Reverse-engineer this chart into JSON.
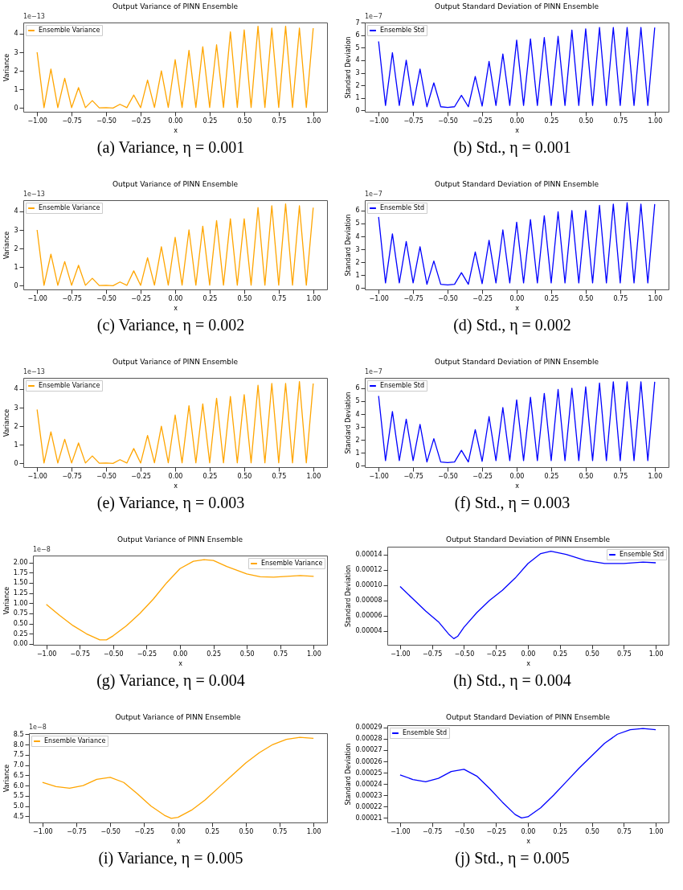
{
  "chart_data": [
    {
      "type": "line",
      "title": "Output Variance of PINN Ensemble",
      "xlabel": "x",
      "ylabel": "Variance",
      "legend": "top left",
      "annotations": [
        "1e−13",
        "(a) Variance, η = 0.001"
      ],
      "xlim": [
        -1.1,
        1.1
      ],
      "xticks": [
        {
          "value": -1,
          "label": "−1.00"
        },
        {
          "value": -0.75,
          "label": "−0.75"
        },
        {
          "value": -0.5,
          "label": "−0.50"
        },
        {
          "value": -0.25,
          "label": "−0.25"
        },
        {
          "value": 0,
          "label": "0.00"
        },
        {
          "value": 0.25,
          "label": "0.25"
        },
        {
          "value": 0.5,
          "label": "0.50"
        },
        {
          "value": 0.75,
          "label": "0.75"
        },
        {
          "value": 1,
          "label": "1.00"
        }
      ],
      "ylim": [
        -0.2,
        4.6
      ],
      "yticks": [
        0,
        1,
        2,
        3,
        4
      ],
      "x": [
        -1,
        -0.95,
        -0.9,
        -0.85,
        -0.8,
        -0.75,
        -0.7,
        -0.65,
        -0.6,
        -0.55,
        -0.5,
        -0.45,
        -0.4,
        -0.35,
        -0.3,
        -0.25,
        -0.2,
        -0.15,
        -0.1,
        -0.05,
        0,
        0.05,
        0.1,
        0.15,
        0.2,
        0.25,
        0.3,
        0.35,
        0.4,
        0.45,
        0.5,
        0.55,
        0.6,
        0.65,
        0.7,
        0.75,
        0.8,
        0.85,
        0.9,
        0.95,
        1
      ],
      "series": [
        {
          "name": "Ensemble Variance",
          "color": "#ffa500",
          "values": [
            3.0,
            0.02,
            2.1,
            0.02,
            1.6,
            0.02,
            1.1,
            0.02,
            0.4,
            0.01,
            0.02,
            0.0,
            0.2,
            0.02,
            0.7,
            0.02,
            1.5,
            0.03,
            2.0,
            0.03,
            2.6,
            0.03,
            3.1,
            0.03,
            3.3,
            0.03,
            3.4,
            0.03,
            4.1,
            0.03,
            4.2,
            0.03,
            4.4,
            0.03,
            4.3,
            0.03,
            4.4,
            0.03,
            4.3,
            0.03,
            4.3
          ]
        }
      ]
    },
    {
      "type": "line",
      "title": "Output Standard Deviation of PINN Ensemble",
      "xlabel": "x",
      "ylabel": "Standard Deviation",
      "legend": "top left",
      "annotations": [
        "1e−7",
        "(b) Std., η = 0.001"
      ],
      "xlim": [
        -1.1,
        1.1
      ],
      "xticks": [
        {
          "value": -1,
          "label": "−1.00"
        },
        {
          "value": -0.75,
          "label": "−0.75"
        },
        {
          "value": -0.5,
          "label": "−0.50"
        },
        {
          "value": -0.25,
          "label": "−0.25"
        },
        {
          "value": 0,
          "label": "0.00"
        },
        {
          "value": 0.25,
          "label": "0.25"
        },
        {
          "value": 0.5,
          "label": "0.50"
        },
        {
          "value": 0.75,
          "label": "0.75"
        },
        {
          "value": 1,
          "label": "1.00"
        }
      ],
      "ylim": [
        -0.1,
        7
      ],
      "yticks": [
        0,
        1,
        2,
        3,
        4,
        5,
        6,
        7
      ],
      "x": [
        -1,
        -0.95,
        -0.9,
        -0.85,
        -0.8,
        -0.75,
        -0.7,
        -0.65,
        -0.6,
        -0.55,
        -0.5,
        -0.45,
        -0.4,
        -0.35,
        -0.3,
        -0.25,
        -0.2,
        -0.15,
        -0.1,
        -0.05,
        0,
        0.05,
        0.1,
        0.15,
        0.2,
        0.25,
        0.3,
        0.35,
        0.4,
        0.45,
        0.5,
        0.55,
        0.6,
        0.65,
        0.7,
        0.75,
        0.8,
        0.85,
        0.9,
        0.95,
        1
      ],
      "series": [
        {
          "name": "Ensemble Std",
          "color": "#0000ff",
          "values": [
            5.5,
            0.4,
            4.6,
            0.4,
            4.0,
            0.4,
            3.3,
            0.3,
            2.2,
            0.3,
            0.25,
            0.3,
            1.2,
            0.3,
            2.7,
            0.35,
            3.9,
            0.4,
            4.5,
            0.4,
            5.6,
            0.4,
            5.7,
            0.4,
            5.8,
            0.4,
            5.9,
            0.4,
            6.4,
            0.4,
            6.5,
            0.4,
            6.6,
            0.4,
            6.6,
            0.4,
            6.6,
            0.4,
            6.6,
            0.4,
            6.6
          ]
        }
      ]
    },
    {
      "type": "line",
      "title": "Output Variance of PINN Ensemble",
      "xlabel": "x",
      "ylabel": "Variance",
      "legend": "top left",
      "annotations": [
        "1e−13",
        "(c) Variance, η = 0.002"
      ],
      "xlim": [
        -1.1,
        1.1
      ],
      "xticks": [
        {
          "value": -1,
          "label": "−1.00"
        },
        {
          "value": -0.75,
          "label": "−0.75"
        },
        {
          "value": -0.5,
          "label": "−0.50"
        },
        {
          "value": -0.25,
          "label": "−0.25"
        },
        {
          "value": 0,
          "label": "0.00"
        },
        {
          "value": 0.25,
          "label": "0.25"
        },
        {
          "value": 0.5,
          "label": "0.50"
        },
        {
          "value": 0.75,
          "label": "0.75"
        },
        {
          "value": 1,
          "label": "1.00"
        }
      ],
      "ylim": [
        -0.2,
        4.6
      ],
      "yticks": [
        0,
        1,
        2,
        3,
        4
      ],
      "x": [
        -1,
        -0.95,
        -0.9,
        -0.85,
        -0.8,
        -0.75,
        -0.7,
        -0.65,
        -0.6,
        -0.55,
        -0.5,
        -0.45,
        -0.4,
        -0.35,
        -0.3,
        -0.25,
        -0.2,
        -0.15,
        -0.1,
        -0.05,
        0,
        0.05,
        0.1,
        0.15,
        0.2,
        0.25,
        0.3,
        0.35,
        0.4,
        0.45,
        0.5,
        0.55,
        0.6,
        0.65,
        0.7,
        0.75,
        0.8,
        0.85,
        0.9,
        0.95,
        1
      ],
      "series": [
        {
          "name": "Ensemble Variance",
          "color": "#ffa500",
          "values": [
            3.0,
            0.02,
            1.7,
            0.02,
            1.3,
            0.02,
            1.1,
            0.02,
            0.4,
            0.01,
            0.02,
            0.0,
            0.2,
            0.02,
            0.8,
            0.02,
            1.5,
            0.03,
            2.1,
            0.03,
            2.6,
            0.03,
            3.0,
            0.03,
            3.2,
            0.03,
            3.5,
            0.03,
            3.6,
            0.03,
            3.6,
            0.03,
            4.2,
            0.03,
            4.3,
            0.03,
            4.4,
            0.03,
            4.3,
            0.03,
            4.2
          ]
        }
      ]
    },
    {
      "type": "line",
      "title": "Output Standard Deviation of PINN Ensemble",
      "xlabel": "x",
      "ylabel": "Standard Deviation",
      "legend": "top left",
      "annotations": [
        "1e−7",
        "(d) Std., η = 0.002"
      ],
      "xlim": [
        -1.1,
        1.1
      ],
      "xticks": [
        {
          "value": -1,
          "label": "−1.00"
        },
        {
          "value": -0.75,
          "label": "−0.75"
        },
        {
          "value": -0.5,
          "label": "−0.50"
        },
        {
          "value": -0.25,
          "label": "−0.25"
        },
        {
          "value": 0,
          "label": "0.00"
        },
        {
          "value": 0.25,
          "label": "0.25"
        },
        {
          "value": 0.5,
          "label": "0.50"
        },
        {
          "value": 0.75,
          "label": "0.75"
        },
        {
          "value": 1,
          "label": "1.00"
        }
      ],
      "ylim": [
        -0.1,
        6.8
      ],
      "yticks": [
        0,
        1,
        2,
        3,
        4,
        5,
        6
      ],
      "x": [
        -1,
        -0.95,
        -0.9,
        -0.85,
        -0.8,
        -0.75,
        -0.7,
        -0.65,
        -0.6,
        -0.55,
        -0.5,
        -0.45,
        -0.4,
        -0.35,
        -0.3,
        -0.25,
        -0.2,
        -0.15,
        -0.1,
        -0.05,
        0,
        0.05,
        0.1,
        0.15,
        0.2,
        0.25,
        0.3,
        0.35,
        0.4,
        0.45,
        0.5,
        0.55,
        0.6,
        0.65,
        0.7,
        0.75,
        0.8,
        0.85,
        0.9,
        0.95,
        1
      ],
      "series": [
        {
          "name": "Ensemble Std",
          "color": "#0000ff",
          "values": [
            5.5,
            0.4,
            4.2,
            0.4,
            3.6,
            0.4,
            3.2,
            0.3,
            2.1,
            0.3,
            0.25,
            0.3,
            1.2,
            0.3,
            2.8,
            0.35,
            3.7,
            0.4,
            4.5,
            0.4,
            5.1,
            0.4,
            5.3,
            0.4,
            5.6,
            0.4,
            5.9,
            0.4,
            6.0,
            0.4,
            6.0,
            0.4,
            6.4,
            0.4,
            6.5,
            0.4,
            6.6,
            0.4,
            6.5,
            0.4,
            6.5
          ]
        }
      ]
    },
    {
      "type": "line",
      "title": "Output Variance of PINN Ensemble",
      "xlabel": "x",
      "ylabel": "Variance",
      "legend": "top left",
      "annotations": [
        "1e−13",
        "(e) Variance, η = 0.003"
      ],
      "xlim": [
        -1.1,
        1.1
      ],
      "xticks": [
        {
          "value": -1,
          "label": "−1.00"
        },
        {
          "value": -0.75,
          "label": "−0.75"
        },
        {
          "value": -0.5,
          "label": "−0.50"
        },
        {
          "value": -0.25,
          "label": "−0.25"
        },
        {
          "value": 0,
          "label": "0.00"
        },
        {
          "value": 0.25,
          "label": "0.25"
        },
        {
          "value": 0.5,
          "label": "0.50"
        },
        {
          "value": 0.75,
          "label": "0.75"
        },
        {
          "value": 1,
          "label": "1.00"
        }
      ],
      "ylim": [
        -0.2,
        4.6
      ],
      "yticks": [
        0,
        1,
        2,
        3,
        4
      ],
      "x": [
        -1,
        -0.95,
        -0.9,
        -0.85,
        -0.8,
        -0.75,
        -0.7,
        -0.65,
        -0.6,
        -0.55,
        -0.5,
        -0.45,
        -0.4,
        -0.35,
        -0.3,
        -0.25,
        -0.2,
        -0.15,
        -0.1,
        -0.05,
        0,
        0.05,
        0.1,
        0.15,
        0.2,
        0.25,
        0.3,
        0.35,
        0.4,
        0.45,
        0.5,
        0.55,
        0.6,
        0.65,
        0.7,
        0.75,
        0.8,
        0.85,
        0.9,
        0.95,
        1
      ],
      "series": [
        {
          "name": "Ensemble Variance",
          "color": "#ffa500",
          "values": [
            2.9,
            0.02,
            1.7,
            0.02,
            1.3,
            0.02,
            1.1,
            0.02,
            0.4,
            0.01,
            0.02,
            0.0,
            0.2,
            0.02,
            0.8,
            0.02,
            1.5,
            0.03,
            2.0,
            0.03,
            2.6,
            0.03,
            3.1,
            0.03,
            3.2,
            0.03,
            3.5,
            0.03,
            3.6,
            0.03,
            3.7,
            0.03,
            4.2,
            0.03,
            4.3,
            0.03,
            4.3,
            0.03,
            4.4,
            0.03,
            4.3
          ]
        }
      ]
    },
    {
      "type": "line",
      "title": "Output Standard Deviation of PINN Ensemble",
      "xlabel": "x",
      "ylabel": "Standard Deviation",
      "legend": "top left",
      "annotations": [
        "1e−7",
        "(f) Std., η = 0.003"
      ],
      "xlim": [
        -1.1,
        1.1
      ],
      "xticks": [
        {
          "value": -1,
          "label": "−1.00"
        },
        {
          "value": -0.75,
          "label": "−0.75"
        },
        {
          "value": -0.5,
          "label": "−0.50"
        },
        {
          "value": -0.25,
          "label": "−0.25"
        },
        {
          "value": 0,
          "label": "0.00"
        },
        {
          "value": 0.25,
          "label": "0.25"
        },
        {
          "value": 0.5,
          "label": "0.50"
        },
        {
          "value": 0.75,
          "label": "0.75"
        },
        {
          "value": 1,
          "label": "1.00"
        }
      ],
      "ylim": [
        -0.1,
        6.8
      ],
      "yticks": [
        0,
        1,
        2,
        3,
        4,
        5,
        6
      ],
      "x": [
        -1,
        -0.95,
        -0.9,
        -0.85,
        -0.8,
        -0.75,
        -0.7,
        -0.65,
        -0.6,
        -0.55,
        -0.5,
        -0.45,
        -0.4,
        -0.35,
        -0.3,
        -0.25,
        -0.2,
        -0.15,
        -0.1,
        -0.05,
        0,
        0.05,
        0.1,
        0.15,
        0.2,
        0.25,
        0.3,
        0.35,
        0.4,
        0.45,
        0.5,
        0.55,
        0.6,
        0.65,
        0.7,
        0.75,
        0.8,
        0.85,
        0.9,
        0.95,
        1
      ],
      "series": [
        {
          "name": "Ensemble Std",
          "color": "#0000ff",
          "values": [
            5.4,
            0.4,
            4.2,
            0.4,
            3.6,
            0.4,
            3.2,
            0.3,
            2.1,
            0.3,
            0.25,
            0.3,
            1.2,
            0.3,
            2.8,
            0.35,
            3.8,
            0.4,
            4.5,
            0.4,
            5.1,
            0.4,
            5.3,
            0.4,
            5.6,
            0.4,
            5.9,
            0.4,
            6.0,
            0.4,
            6.1,
            0.4,
            6.4,
            0.4,
            6.5,
            0.4,
            6.5,
            0.4,
            6.5,
            0.4,
            6.5
          ]
        }
      ]
    },
    {
      "type": "line",
      "title": "Output Variance of PINN Ensemble",
      "xlabel": "x",
      "ylabel": "Variance",
      "legend": "top right",
      "annotations": [
        "1e−8",
        "(g) Variance, η = 0.004"
      ],
      "xlim": [
        -1.1,
        1.1
      ],
      "xticks": [
        {
          "value": -1,
          "label": "−1.00"
        },
        {
          "value": -0.75,
          "label": "−0.75"
        },
        {
          "value": -0.5,
          "label": "−0.50"
        },
        {
          "value": -0.25,
          "label": "−0.25"
        },
        {
          "value": 0,
          "label": "0.00"
        },
        {
          "value": 0.25,
          "label": "0.25"
        },
        {
          "value": 0.5,
          "label": "0.50"
        },
        {
          "value": 0.75,
          "label": "0.75"
        },
        {
          "value": 1,
          "label": "1.00"
        }
      ],
      "ylim": [
        -0.02,
        2.17
      ],
      "yticks": [
        {
          "value": 0,
          "label": "0.00"
        },
        0.25,
        {
          "value": 0.5,
          "label": "0.50"
        },
        0.75,
        {
          "value": 1,
          "label": "1.00"
        },
        1.25,
        {
          "value": 1.5,
          "label": "1.50"
        },
        1.75,
        {
          "value": 2,
          "label": "2.00"
        }
      ],
      "x": [
        -1,
        -0.9,
        -0.8,
        -0.7,
        -0.6,
        -0.55,
        -0.5,
        -0.4,
        -0.3,
        -0.2,
        -0.1,
        0,
        0.1,
        0.18,
        0.25,
        0.35,
        0.5,
        0.6,
        0.7,
        0.8,
        0.9,
        1
      ],
      "series": [
        {
          "name": "Ensemble Variance",
          "color": "#ffa500",
          "values": [
            0.97,
            0.7,
            0.45,
            0.25,
            0.1,
            0.1,
            0.2,
            0.45,
            0.75,
            1.1,
            1.5,
            1.85,
            2.03,
            2.07,
            2.05,
            1.9,
            1.72,
            1.65,
            1.64,
            1.66,
            1.68,
            1.66
          ]
        }
      ]
    },
    {
      "type": "line",
      "title": "Output Standard Deviation of PINN Ensemble",
      "xlabel": "x",
      "ylabel": "Standard Deviation",
      "legend": "top right",
      "annotations": [
        "(h) Std., η = 0.004"
      ],
      "xlim": [
        -1.1,
        1.1
      ],
      "xticks": [
        {
          "value": -1,
          "label": "−1.00"
        },
        {
          "value": -0.75,
          "label": "−0.75"
        },
        {
          "value": -0.5,
          "label": "−0.50"
        },
        {
          "value": -0.25,
          "label": "−0.25"
        },
        {
          "value": 0,
          "label": "0.00"
        },
        {
          "value": 0.25,
          "label": "0.25"
        },
        {
          "value": 0.5,
          "label": "0.50"
        },
        {
          "value": 0.75,
          "label": "0.75"
        },
        {
          "value": 1,
          "label": "1.00"
        }
      ],
      "ylim": [
        2.2e-05,
        0.00015
      ],
      "yticks": [
        {
          "value": 4e-05,
          "label": "0.00004"
        },
        {
          "value": 6e-05,
          "label": "0.00006"
        },
        {
          "value": 8e-05,
          "label": "0.00008"
        },
        {
          "value": 0.0001,
          "label": "0.00010"
        },
        {
          "value": 0.00012,
          "label": "0.00012"
        },
        {
          "value": 0.00014,
          "label": "0.00014"
        }
      ],
      "x": [
        -1,
        -0.9,
        -0.8,
        -0.7,
        -0.62,
        -0.58,
        -0.55,
        -0.5,
        -0.4,
        -0.3,
        -0.2,
        -0.1,
        0,
        0.1,
        0.18,
        0.3,
        0.45,
        0.6,
        0.75,
        0.9,
        1
      ],
      "series": [
        {
          "name": "Ensemble Std",
          "color": "#0000ff",
          "values": [
            9.8e-05,
            8.2e-05,
            6.6e-05,
            5.2e-05,
            3.6e-05,
            3e-05,
            3.3e-05,
            4.5e-05,
            6.4e-05,
            8e-05,
            9.3e-05,
            0.000109,
            0.000128,
            0.000141,
            0.000144,
            0.00014,
            0.000132,
            0.000128,
            0.000128,
            0.00013,
            0.000129
          ]
        }
      ]
    },
    {
      "type": "line",
      "title": "Output Variance of PINN Ensemble",
      "xlabel": "x",
      "ylabel": "Variance",
      "legend": "top left",
      "annotations": [
        "1e−8",
        "(i) Variance, η = 0.005"
      ],
      "xlim": [
        -1.1,
        1.1
      ],
      "xticks": [
        {
          "value": -1,
          "label": "−1.00"
        },
        {
          "value": -0.75,
          "label": "−0.75"
        },
        {
          "value": -0.5,
          "label": "−0.50"
        },
        {
          "value": -0.25,
          "label": "−0.25"
        },
        {
          "value": 0,
          "label": "0.00"
        },
        {
          "value": 0.25,
          "label": "0.25"
        },
        {
          "value": 0.5,
          "label": "0.50"
        },
        {
          "value": 0.75,
          "label": "0.75"
        },
        {
          "value": 1,
          "label": "1.00"
        }
      ],
      "ylim": [
        4.2,
        8.55
      ],
      "yticks": [
        4.5,
        {
          "value": 5,
          "label": "5.0"
        },
        5.5,
        {
          "value": 6,
          "label": "6.0"
        },
        6.5,
        {
          "value": 7,
          "label": "7.0"
        },
        7.5,
        {
          "value": 8,
          "label": "8.0"
        },
        8.5
      ],
      "x": [
        -1,
        -0.9,
        -0.8,
        -0.7,
        -0.6,
        -0.5,
        -0.4,
        -0.3,
        -0.2,
        -0.1,
        -0.05,
        0,
        0.1,
        0.2,
        0.3,
        0.4,
        0.5,
        0.6,
        0.7,
        0.8,
        0.9,
        1
      ],
      "series": [
        {
          "name": "Ensemble Variance",
          "color": "#ffa500",
          "values": [
            6.15,
            5.95,
            5.87,
            6.0,
            6.3,
            6.4,
            6.15,
            5.6,
            5.0,
            4.55,
            4.4,
            4.45,
            4.8,
            5.3,
            5.9,
            6.5,
            7.1,
            7.6,
            8.0,
            8.25,
            8.35,
            8.3
          ]
        }
      ]
    },
    {
      "type": "line",
      "title": "Output Standard Deviation of PINN Ensemble",
      "xlabel": "x",
      "ylabel": "Standard Deviation",
      "legend": "top left",
      "annotations": [
        "(j) Std., η = 0.005"
      ],
      "xlim": [
        -1.1,
        1.1
      ],
      "xticks": [
        {
          "value": -1,
          "label": "−1.00"
        },
        {
          "value": -0.75,
          "label": "−0.75"
        },
        {
          "value": -0.5,
          "label": "−0.50"
        },
        {
          "value": -0.25,
          "label": "−0.25"
        },
        {
          "value": 0,
          "label": "0.00"
        },
        {
          "value": 0.25,
          "label": "0.25"
        },
        {
          "value": 0.5,
          "label": "0.50"
        },
        {
          "value": 0.75,
          "label": "0.75"
        },
        {
          "value": 1,
          "label": "1.00"
        }
      ],
      "ylim": [
        0.000206,
        0.000292
      ],
      "yticks": [
        0.00021,
        {
          "value": 0.00022,
          "label": "0.00022"
        },
        0.00023,
        0.00024,
        0.00025,
        0.00026,
        0.00027,
        0.00028,
        0.00029
      ],
      "x": [
        -1,
        -0.9,
        -0.8,
        -0.7,
        -0.6,
        -0.5,
        -0.4,
        -0.3,
        -0.2,
        -0.1,
        -0.05,
        0,
        0.1,
        0.2,
        0.3,
        0.4,
        0.5,
        0.6,
        0.7,
        0.8,
        0.9,
        1
      ],
      "series": [
        {
          "name": "Ensemble Std",
          "color": "#0000ff",
          "values": [
            0.000248,
            0.000244,
            0.000242,
            0.000245,
            0.000251,
            0.000253,
            0.000247,
            0.000236,
            0.000224,
            0.000213,
            0.00021,
            0.000211,
            0.000219,
            0.00023,
            0.000242,
            0.000254,
            0.000265,
            0.000276,
            0.000284,
            0.000288,
            0.000289,
            0.000288
          ]
        }
      ]
    }
  ]
}
